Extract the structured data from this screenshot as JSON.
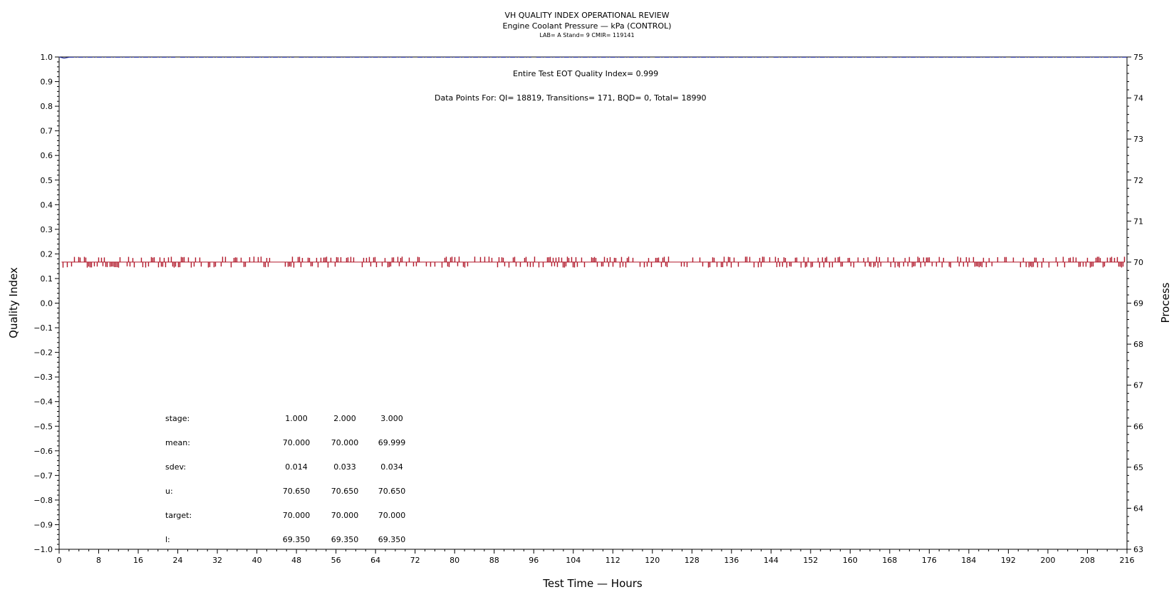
{
  "header": {
    "title": "VH QUALITY INDEX OPERATIONAL REVIEW",
    "subtitle": "Engine Coolant Pressure — kPa (CONTROL)",
    "info": "LAB= A Stand= 9 CMIR= 119141"
  },
  "annotations": {
    "eot": "Entire Test EOT Quality Index=   0.999",
    "counts": "Data Points For: QI= 18819, Transitions=   171, BQD=     0, Total= 18990"
  },
  "stats": {
    "labels": [
      "stage:",
      "mean:",
      "sdev:",
      "u:",
      "target:",
      "l:"
    ],
    "rows": [
      [
        "1.000",
        "2.000",
        "3.000"
      ],
      [
        "70.000",
        "70.000",
        "69.999"
      ],
      [
        "0.014",
        "0.033",
        "0.034"
      ],
      [
        "70.650",
        "70.650",
        "70.650"
      ],
      [
        "70.000",
        "70.000",
        "70.000"
      ],
      [
        "69.350",
        "69.350",
        "69.350"
      ]
    ]
  },
  "chart_data": {
    "type": "line",
    "title": "VH QUALITY INDEX OPERATIONAL REVIEW",
    "xlabel": "Test Time — Hours",
    "ylabel": "Quality Index",
    "y2label": "Process",
    "xlim": [
      0,
      216
    ],
    "ylim": [
      -1.0,
      1.0
    ],
    "y2lim": [
      63,
      75
    ],
    "x_ticks": [
      0,
      8,
      16,
      24,
      32,
      40,
      48,
      56,
      64,
      72,
      80,
      88,
      96,
      104,
      112,
      120,
      128,
      136,
      144,
      152,
      160,
      168,
      176,
      184,
      192,
      200,
      208,
      216
    ],
    "y_ticks": [
      "1.0",
      "0.9",
      "0.8",
      "0.7",
      "0.6",
      "0.5",
      "0.4",
      "0.3",
      "0.2",
      "0.1",
      "0.0",
      "−0.1",
      "−0.2",
      "−0.3",
      "−0.4",
      "−0.5",
      "−0.6",
      "−0.7",
      "−0.8",
      "−0.9",
      "−1.0"
    ],
    "y2_ticks": [
      75,
      74,
      73,
      72,
      71,
      70,
      69,
      68,
      67,
      66,
      65,
      64,
      63
    ],
    "series": [
      {
        "axis": "left",
        "color": "#1f2aa8",
        "style": "dash-dot",
        "x": [
          0,
          1,
          2,
          216
        ],
        "y": [
          1.0,
          0.995,
          0.999,
          0.999
        ],
        "gaps": [
          [
            23.5,
            24.5
          ],
          [
            47.5,
            48.5
          ],
          [
            71.5,
            72.5
          ],
          [
            95.5,
            96.5
          ],
          [
            119.5,
            120.5
          ],
          [
            143.5,
            144.5
          ],
          [
            167.5,
            168.5
          ],
          [
            191.5,
            192.5
          ]
        ]
      },
      {
        "axis": "right",
        "color": "#b0182a",
        "style": "solid",
        "baseline": 70.0,
        "band": [
          69.9,
          70.1
        ],
        "x_range": [
          0.5,
          215.5
        ]
      }
    ],
    "grid": false
  }
}
